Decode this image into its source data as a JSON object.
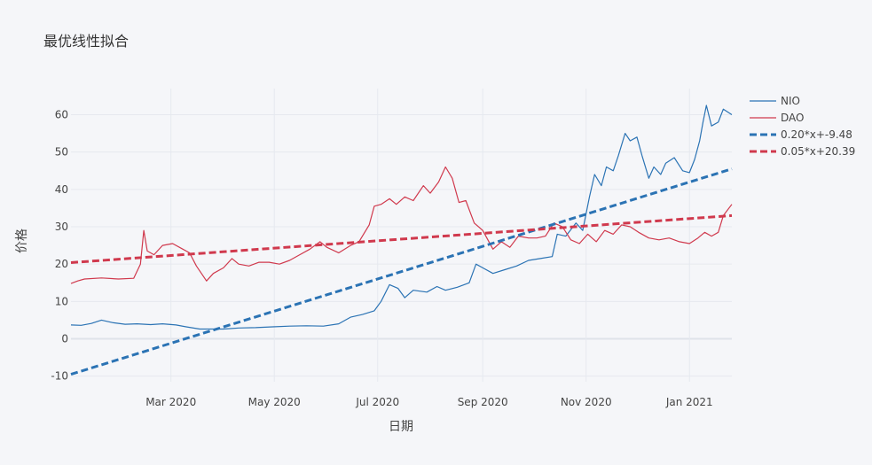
{
  "chart_data": {
    "type": "line",
    "title": "最优线性拟合",
    "xlabel": "日期",
    "ylabel": "价格",
    "grid": true,
    "legend_position": "right",
    "x_range": [
      "2020-01-02",
      "2021-01-26"
    ],
    "ylim": [
      -11.5,
      67
    ],
    "x_ticks": [
      {
        "date": "2020-03-01",
        "label": "Mar 2020"
      },
      {
        "date": "2020-05-01",
        "label": "May 2020"
      },
      {
        "date": "2020-07-01",
        "label": "Jul 2020"
      },
      {
        "date": "2020-09-01",
        "label": "Sep 2020"
      },
      {
        "date": "2020-11-01",
        "label": "Nov 2020"
      },
      {
        "date": "2021-01-01",
        "label": "Jan 2021"
      }
    ],
    "y_ticks": [
      -10,
      0,
      10,
      20,
      30,
      40,
      50,
      60
    ],
    "series": [
      {
        "name": "NIO",
        "kind": "line",
        "color": "#2b73b4",
        "dash": false,
        "points": [
          [
            "2020-01-02",
            3.7
          ],
          [
            "2020-01-08",
            3.6
          ],
          [
            "2020-01-14",
            4.1
          ],
          [
            "2020-01-20",
            5.0
          ],
          [
            "2020-01-27",
            4.3
          ],
          [
            "2020-02-03",
            3.9
          ],
          [
            "2020-02-10",
            4.0
          ],
          [
            "2020-02-18",
            3.8
          ],
          [
            "2020-02-25",
            4.0
          ],
          [
            "2020-03-04",
            3.7
          ],
          [
            "2020-03-10",
            3.2
          ],
          [
            "2020-03-18",
            2.6
          ],
          [
            "2020-03-25",
            2.6
          ],
          [
            "2020-04-01",
            2.6
          ],
          [
            "2020-04-10",
            2.9
          ],
          [
            "2020-04-20",
            3.0
          ],
          [
            "2020-04-30",
            3.2
          ],
          [
            "2020-05-10",
            3.4
          ],
          [
            "2020-05-20",
            3.5
          ],
          [
            "2020-05-30",
            3.4
          ],
          [
            "2020-06-08",
            4.0
          ],
          [
            "2020-06-15",
            5.8
          ],
          [
            "2020-06-22",
            6.5
          ],
          [
            "2020-06-29",
            7.5
          ],
          [
            "2020-07-03",
            10.0
          ],
          [
            "2020-07-08",
            14.5
          ],
          [
            "2020-07-13",
            13.5
          ],
          [
            "2020-07-17",
            11.0
          ],
          [
            "2020-07-22",
            13.0
          ],
          [
            "2020-07-30",
            12.5
          ],
          [
            "2020-08-05",
            14.0
          ],
          [
            "2020-08-10",
            13.0
          ],
          [
            "2020-08-17",
            13.8
          ],
          [
            "2020-08-24",
            15.0
          ],
          [
            "2020-08-28",
            20.0
          ],
          [
            "2020-09-01",
            19.0
          ],
          [
            "2020-09-07",
            17.5
          ],
          [
            "2020-09-14",
            18.5
          ],
          [
            "2020-09-21",
            19.5
          ],
          [
            "2020-09-28",
            21.0
          ],
          [
            "2020-10-05",
            21.5
          ],
          [
            "2020-10-12",
            22.0
          ],
          [
            "2020-10-15",
            28.0
          ],
          [
            "2020-10-20",
            27.5
          ],
          [
            "2020-10-26",
            31.0
          ],
          [
            "2020-10-30",
            29.0
          ],
          [
            "2020-11-03",
            38.0
          ],
          [
            "2020-11-06",
            44.0
          ],
          [
            "2020-11-10",
            41.0
          ],
          [
            "2020-11-13",
            46.0
          ],
          [
            "2020-11-17",
            45.0
          ],
          [
            "2020-11-20",
            49.0
          ],
          [
            "2020-11-24",
            55.0
          ],
          [
            "2020-11-27",
            53.0
          ],
          [
            "2020-12-01",
            54.0
          ],
          [
            "2020-12-04",
            49.0
          ],
          [
            "2020-12-08",
            43.0
          ],
          [
            "2020-12-11",
            46.0
          ],
          [
            "2020-12-15",
            44.0
          ],
          [
            "2020-12-18",
            47.0
          ],
          [
            "2020-12-23",
            48.5
          ],
          [
            "2020-12-28",
            45.0
          ],
          [
            "2021-01-01",
            44.5
          ],
          [
            "2021-01-04",
            48.0
          ],
          [
            "2021-01-07",
            53.0
          ],
          [
            "2021-01-09",
            58.0
          ],
          [
            "2021-01-11",
            62.5
          ],
          [
            "2021-01-14",
            57.0
          ],
          [
            "2021-01-18",
            58.0
          ],
          [
            "2021-01-21",
            61.5
          ],
          [
            "2021-01-26",
            60.0
          ]
        ]
      },
      {
        "name": "DAO",
        "kind": "line",
        "color": "#d0394d",
        "dash": false,
        "points": [
          [
            "2020-01-02",
            14.8
          ],
          [
            "2020-01-06",
            15.5
          ],
          [
            "2020-01-10",
            16.0
          ],
          [
            "2020-01-20",
            16.3
          ],
          [
            "2020-01-30",
            16.0
          ],
          [
            "2020-02-08",
            16.2
          ],
          [
            "2020-02-12",
            20.0
          ],
          [
            "2020-02-14",
            29.0
          ],
          [
            "2020-02-16",
            23.5
          ],
          [
            "2020-02-20",
            22.5
          ],
          [
            "2020-02-25",
            25.0
          ],
          [
            "2020-03-02",
            25.5
          ],
          [
            "2020-03-08",
            24.0
          ],
          [
            "2020-03-12",
            23.0
          ],
          [
            "2020-03-16",
            19.5
          ],
          [
            "2020-03-22",
            15.5
          ],
          [
            "2020-03-26",
            17.5
          ],
          [
            "2020-04-01",
            19.0
          ],
          [
            "2020-04-06",
            21.5
          ],
          [
            "2020-04-10",
            20.0
          ],
          [
            "2020-04-16",
            19.5
          ],
          [
            "2020-04-22",
            20.5
          ],
          [
            "2020-04-28",
            20.5
          ],
          [
            "2020-05-04",
            20.0
          ],
          [
            "2020-05-10",
            21.0
          ],
          [
            "2020-05-16",
            22.5
          ],
          [
            "2020-05-22",
            24.0
          ],
          [
            "2020-05-28",
            26.0
          ],
          [
            "2020-06-01",
            24.5
          ],
          [
            "2020-06-08",
            23.0
          ],
          [
            "2020-06-15",
            25.0
          ],
          [
            "2020-06-20",
            26.0
          ],
          [
            "2020-06-26",
            30.5
          ],
          [
            "2020-06-29",
            35.5
          ],
          [
            "2020-07-03",
            36.0
          ],
          [
            "2020-07-08",
            37.5
          ],
          [
            "2020-07-12",
            36.0
          ],
          [
            "2020-07-17",
            38.0
          ],
          [
            "2020-07-22",
            37.0
          ],
          [
            "2020-07-28",
            41.0
          ],
          [
            "2020-08-01",
            39.0
          ],
          [
            "2020-08-06",
            42.0
          ],
          [
            "2020-08-10",
            46.0
          ],
          [
            "2020-08-14",
            43.0
          ],
          [
            "2020-08-18",
            36.5
          ],
          [
            "2020-08-22",
            37.0
          ],
          [
            "2020-08-27",
            31.0
          ],
          [
            "2020-09-01",
            29.0
          ],
          [
            "2020-09-07",
            24.0
          ],
          [
            "2020-09-12",
            26.0
          ],
          [
            "2020-09-17",
            24.5
          ],
          [
            "2020-09-22",
            27.5
          ],
          [
            "2020-09-28",
            27.0
          ],
          [
            "2020-10-03",
            27.0
          ],
          [
            "2020-10-08",
            27.5
          ],
          [
            "2020-10-13",
            31.0
          ],
          [
            "2020-10-18",
            30.0
          ],
          [
            "2020-10-23",
            26.5
          ],
          [
            "2020-10-28",
            25.5
          ],
          [
            "2020-11-02",
            28.0
          ],
          [
            "2020-11-07",
            26.0
          ],
          [
            "2020-11-12",
            29.0
          ],
          [
            "2020-11-17",
            28.0
          ],
          [
            "2020-11-22",
            30.5
          ],
          [
            "2020-11-27",
            30.0
          ],
          [
            "2020-12-02",
            28.5
          ],
          [
            "2020-12-08",
            27.0
          ],
          [
            "2020-12-14",
            26.5
          ],
          [
            "2020-12-20",
            27.0
          ],
          [
            "2020-12-26",
            26.0
          ],
          [
            "2021-01-01",
            25.5
          ],
          [
            "2021-01-06",
            27.0
          ],
          [
            "2021-01-10",
            28.5
          ],
          [
            "2021-01-14",
            27.5
          ],
          [
            "2021-01-18",
            28.5
          ],
          [
            "2021-01-21",
            33.0
          ],
          [
            "2021-01-26",
            36.0
          ]
        ]
      },
      {
        "name": "0.20*x+-9.48",
        "kind": "fit",
        "color": "#2b73b4",
        "dash": true,
        "points": [
          [
            "2020-01-02",
            -9.5
          ],
          [
            "2021-01-26",
            45.5
          ]
        ]
      },
      {
        "name": "0.05*x+20.39",
        "kind": "fit",
        "color": "#d0394d",
        "dash": true,
        "points": [
          [
            "2020-01-02",
            20.4
          ],
          [
            "2021-01-26",
            33.0
          ]
        ]
      }
    ]
  }
}
